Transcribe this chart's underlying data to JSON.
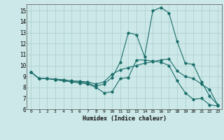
{
  "title": "",
  "xlabel": "Humidex (Indice chaleur)",
  "bg_color": "#cce8e8",
  "grid_color": "#aacccc",
  "line_color": "#1a6e6a",
  "xlim": [
    -0.5,
    23.5
  ],
  "ylim": [
    6,
    15.6
  ],
  "yticks": [
    6,
    7,
    8,
    9,
    10,
    11,
    12,
    13,
    14,
    15
  ],
  "xticks": [
    0,
    1,
    2,
    3,
    4,
    5,
    6,
    7,
    8,
    9,
    10,
    11,
    12,
    13,
    14,
    15,
    16,
    17,
    18,
    19,
    20,
    21,
    22,
    23
  ],
  "line1_x": [
    0,
    1,
    2,
    3,
    4,
    5,
    6,
    7,
    8,
    9,
    10,
    11,
    12,
    13,
    14,
    15,
    16,
    17,
    18,
    19,
    20,
    21,
    22,
    23
  ],
  "line1_y": [
    9.4,
    8.8,
    8.8,
    8.7,
    8.6,
    8.5,
    8.4,
    8.3,
    8.0,
    7.5,
    7.6,
    8.8,
    8.9,
    10.5,
    10.5,
    10.4,
    10.3,
    10.0,
    8.6,
    7.5,
    6.9,
    7.0,
    6.4,
    6.3
  ],
  "line2_x": [
    0,
    1,
    2,
    3,
    4,
    5,
    6,
    7,
    8,
    9,
    10,
    11,
    12,
    13,
    14,
    15,
    16,
    17,
    18,
    19,
    20,
    21,
    22,
    23
  ],
  "line2_y": [
    9.4,
    8.8,
    8.8,
    8.7,
    8.6,
    8.5,
    8.5,
    8.4,
    8.1,
    8.3,
    8.9,
    10.3,
    13.0,
    12.8,
    10.8,
    15.0,
    15.3,
    14.8,
    12.2,
    10.2,
    10.1,
    8.5,
    7.2,
    6.4
  ],
  "line3_x": [
    0,
    1,
    2,
    3,
    4,
    5,
    6,
    7,
    8,
    9,
    10,
    11,
    12,
    13,
    14,
    15,
    16,
    17,
    18,
    19,
    20,
    21,
    22,
    23
  ],
  "line3_y": [
    9.4,
    8.8,
    8.8,
    8.75,
    8.7,
    8.6,
    8.55,
    8.5,
    8.3,
    8.5,
    9.2,
    9.6,
    9.8,
    10.0,
    10.2,
    10.35,
    10.5,
    10.6,
    9.5,
    9.0,
    8.8,
    8.3,
    7.8,
    6.4
  ]
}
